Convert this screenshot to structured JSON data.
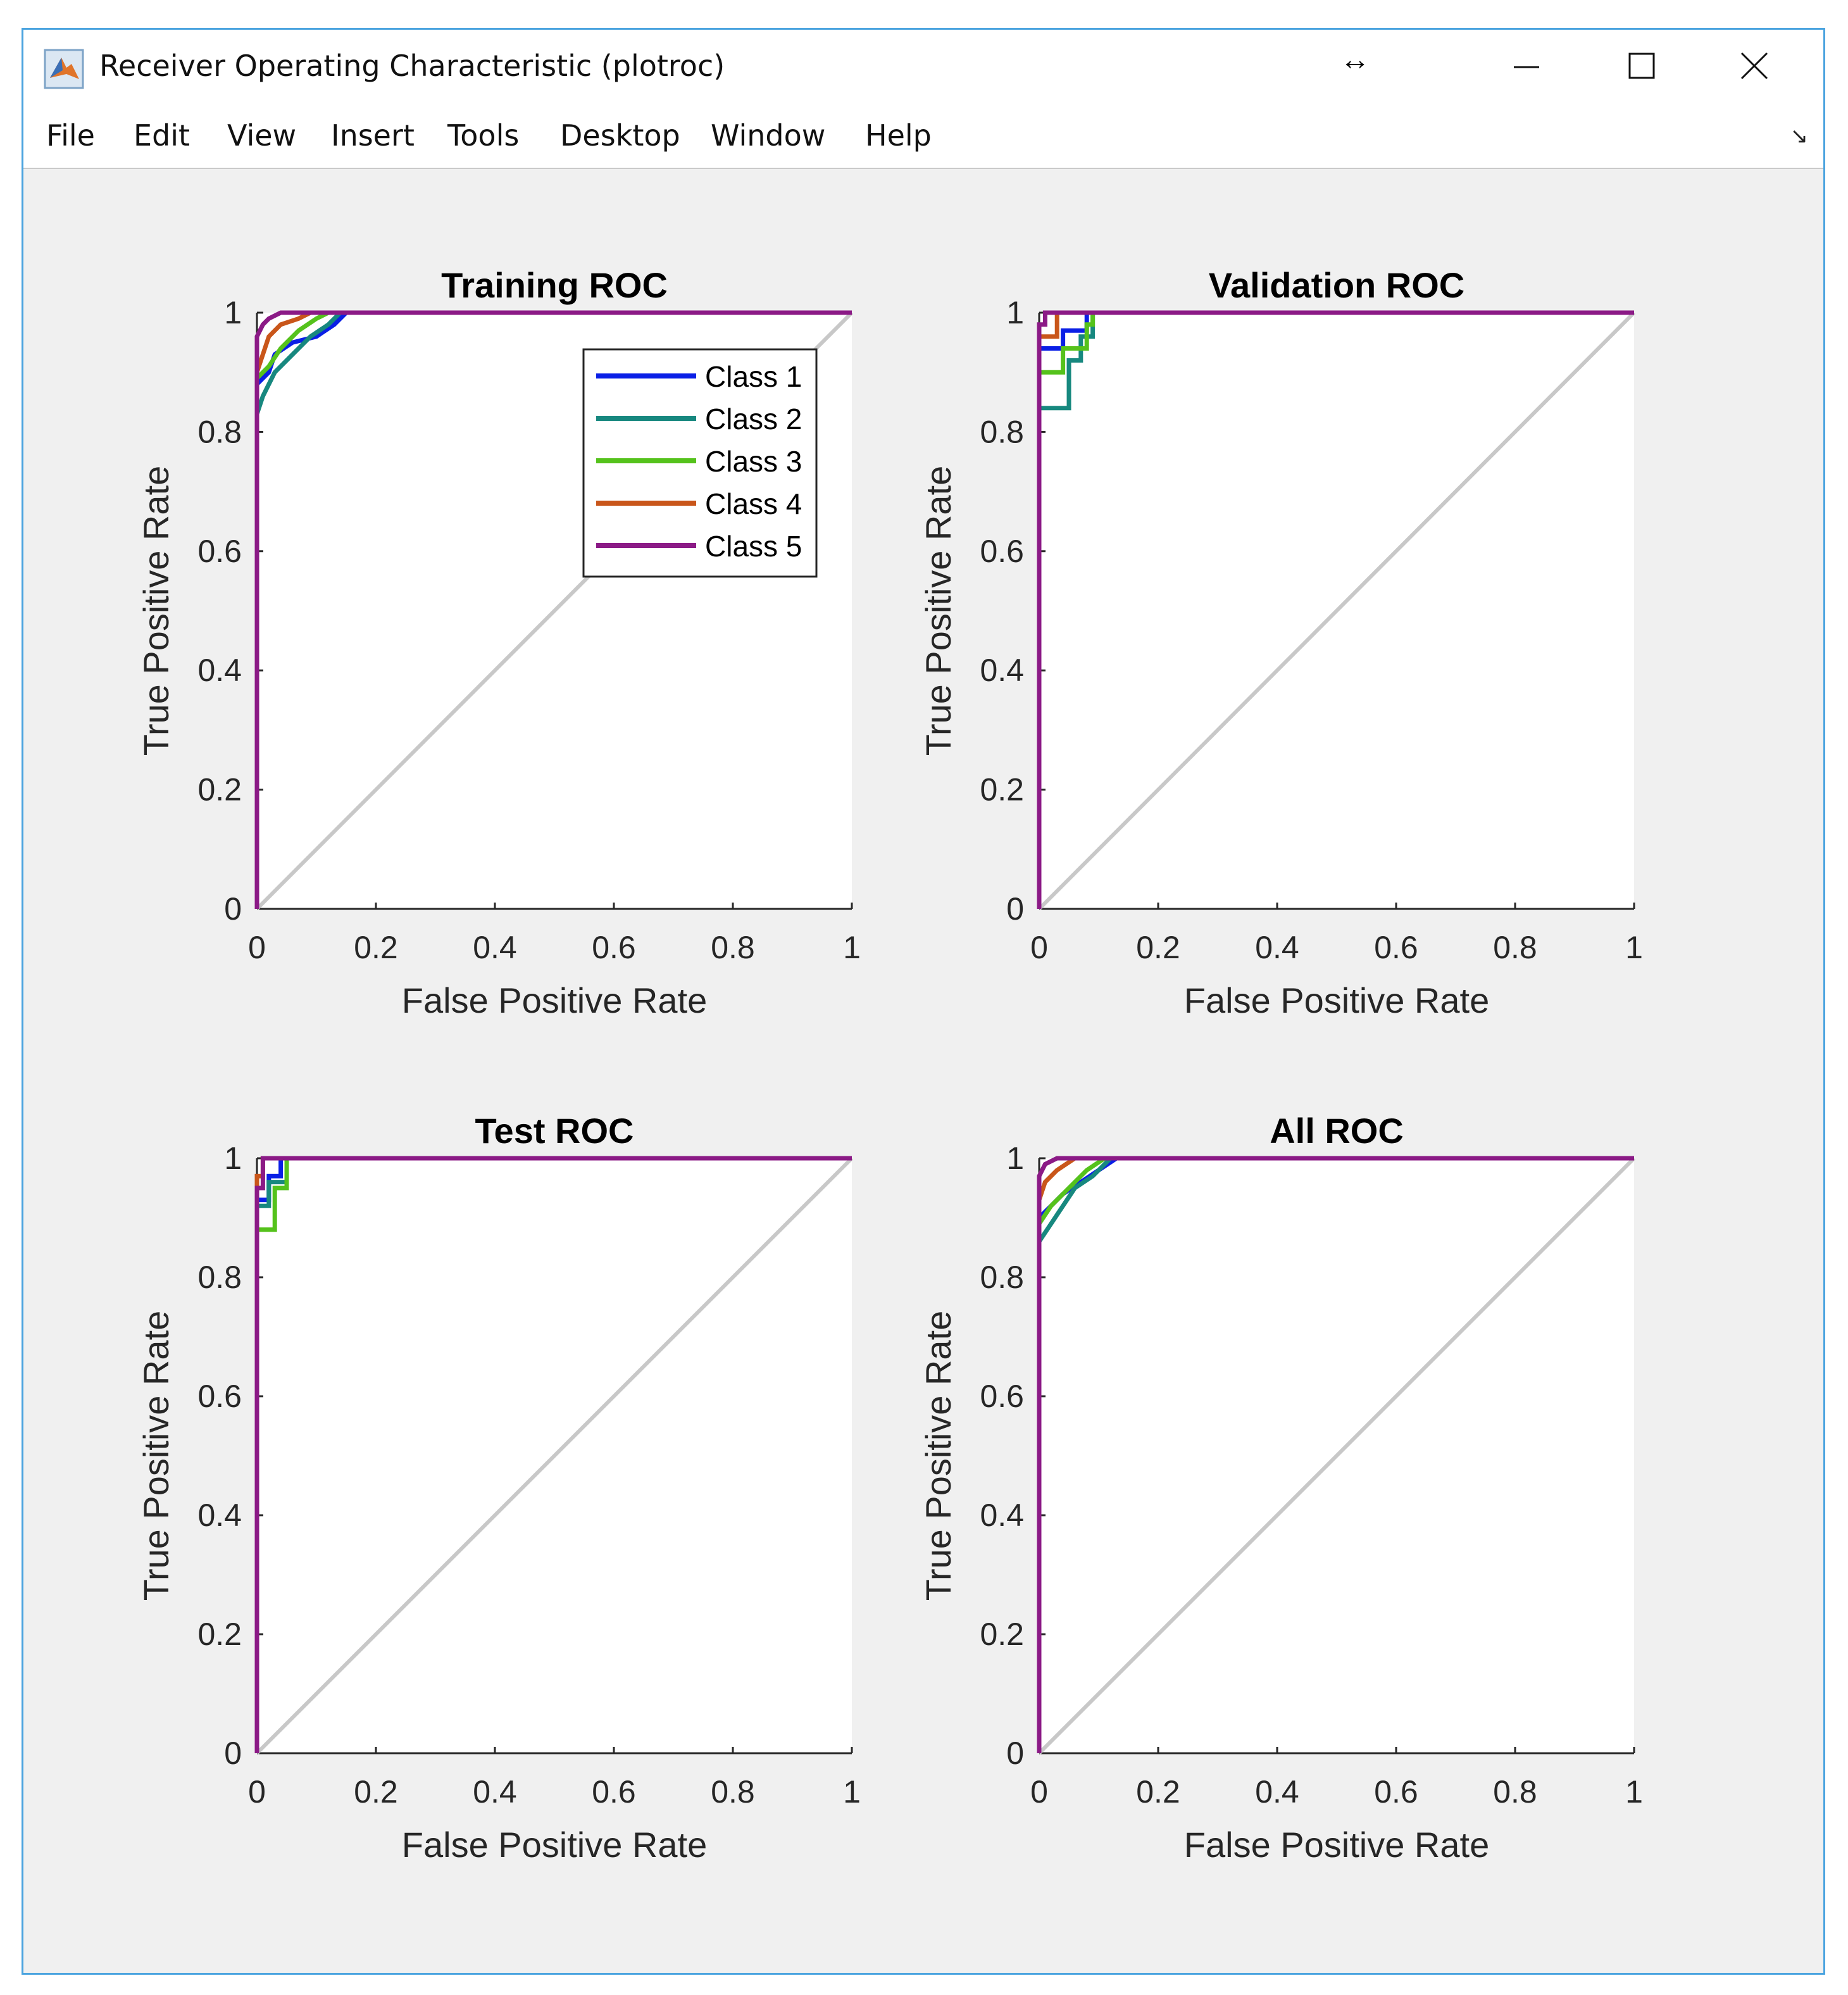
{
  "window": {
    "title": "Receiver Operating Characteristic (plotroc)",
    "controls": {
      "resize_glyph": "↔",
      "minimize_icon": "minimize-icon",
      "maximize_icon": "maximize-icon",
      "close_icon": "close-icon"
    }
  },
  "menu": {
    "items": [
      {
        "label": "File"
      },
      {
        "label": "Edit"
      },
      {
        "label": "View"
      },
      {
        "label": "Insert"
      },
      {
        "label": "Tools"
      },
      {
        "label": "Desktop"
      },
      {
        "label": "Window"
      },
      {
        "label": "Help"
      }
    ],
    "dock_glyph": "↘"
  },
  "colors": {
    "Class 1": "#0a1fe6",
    "Class 2": "#17887f",
    "Class 3": "#55c21c",
    "Class 4": "#c9561a",
    "Class 5": "#8b1a86",
    "diagonal": "#c8c8c8"
  },
  "chart_data": [
    {
      "type": "line",
      "title": "Training ROC",
      "xlabel": "False Positive Rate",
      "ylabel": "True Positive Rate",
      "xlim": [
        0,
        1
      ],
      "ylim": [
        0,
        1
      ],
      "xticks": [
        "0",
        "0.2",
        "0.4",
        "0.6",
        "0.8",
        "1"
      ],
      "yticks": [
        "0",
        "0.2",
        "0.4",
        "0.6",
        "0.8",
        "1"
      ],
      "legend": {
        "position": "top-right",
        "entries": [
          "Class 1",
          "Class 2",
          "Class 3",
          "Class 4",
          "Class 5"
        ]
      },
      "series": [
        {
          "name": "Class 1",
          "points": [
            [
              0,
              0
            ],
            [
              0,
              0.88
            ],
            [
              0.02,
              0.9
            ],
            [
              0.03,
              0.93
            ],
            [
              0.06,
              0.95
            ],
            [
              0.1,
              0.96
            ],
            [
              0.13,
              0.98
            ],
            [
              0.15,
              1
            ],
            [
              1,
              1
            ]
          ]
        },
        {
          "name": "Class 2",
          "points": [
            [
              0,
              0
            ],
            [
              0,
              0.83
            ],
            [
              0.01,
              0.86
            ],
            [
              0.03,
              0.9
            ],
            [
              0.06,
              0.93
            ],
            [
              0.09,
              0.96
            ],
            [
              0.12,
              0.98
            ],
            [
              0.14,
              1
            ],
            [
              1,
              1
            ]
          ]
        },
        {
          "name": "Class 3",
          "points": [
            [
              0,
              0
            ],
            [
              0,
              0.89
            ],
            [
              0.02,
              0.91
            ],
            [
              0.04,
              0.94
            ],
            [
              0.07,
              0.97
            ],
            [
              0.1,
              0.99
            ],
            [
              0.12,
              1
            ],
            [
              1,
              1
            ]
          ]
        },
        {
          "name": "Class 4",
          "points": [
            [
              0,
              0
            ],
            [
              0,
              0.9
            ],
            [
              0.01,
              0.93
            ],
            [
              0.02,
              0.96
            ],
            [
              0.04,
              0.98
            ],
            [
              0.07,
              0.99
            ],
            [
              0.09,
              1
            ],
            [
              1,
              1
            ]
          ]
        },
        {
          "name": "Class 5",
          "points": [
            [
              0,
              0
            ],
            [
              0,
              0.96
            ],
            [
              0.01,
              0.98
            ],
            [
              0.02,
              0.99
            ],
            [
              0.04,
              1
            ],
            [
              1,
              1
            ]
          ]
        }
      ],
      "diagonal": true
    },
    {
      "type": "line",
      "title": "Validation ROC",
      "xlabel": "False Positive Rate",
      "ylabel": "True Positive Rate",
      "xlim": [
        0,
        1
      ],
      "ylim": [
        0,
        1
      ],
      "xticks": [
        "0",
        "0.2",
        "0.4",
        "0.6",
        "0.8",
        "1"
      ],
      "yticks": [
        "0",
        "0.2",
        "0.4",
        "0.6",
        "0.8",
        "1"
      ],
      "series": [
        {
          "name": "Class 1",
          "points": [
            [
              0,
              0
            ],
            [
              0,
              0.94
            ],
            [
              0.04,
              0.94
            ],
            [
              0.04,
              0.97
            ],
            [
              0.08,
              0.97
            ],
            [
              0.08,
              1
            ],
            [
              1,
              1
            ]
          ]
        },
        {
          "name": "Class 2",
          "points": [
            [
              0,
              0
            ],
            [
              0,
              0.84
            ],
            [
              0.05,
              0.84
            ],
            [
              0.05,
              0.92
            ],
            [
              0.07,
              0.92
            ],
            [
              0.07,
              0.96
            ],
            [
              0.09,
              0.96
            ],
            [
              0.09,
              1
            ],
            [
              1,
              1
            ]
          ]
        },
        {
          "name": "Class 3",
          "points": [
            [
              0,
              0
            ],
            [
              0,
              0.9
            ],
            [
              0.04,
              0.9
            ],
            [
              0.04,
              0.94
            ],
            [
              0.08,
              0.94
            ],
            [
              0.08,
              0.98
            ],
            [
              0.09,
              0.98
            ],
            [
              0.09,
              1
            ],
            [
              1,
              1
            ]
          ]
        },
        {
          "name": "Class 4",
          "points": [
            [
              0,
              0
            ],
            [
              0,
              0.96
            ],
            [
              0.03,
              0.96
            ],
            [
              0.03,
              1
            ],
            [
              1,
              1
            ]
          ]
        },
        {
          "name": "Class 5",
          "points": [
            [
              0,
              0
            ],
            [
              0,
              0.98
            ],
            [
              0.01,
              0.98
            ],
            [
              0.01,
              1
            ],
            [
              1,
              1
            ]
          ]
        }
      ],
      "diagonal": true
    },
    {
      "type": "line",
      "title": "Test ROC",
      "xlabel": "False Positive Rate",
      "ylabel": "True Positive Rate",
      "xlim": [
        0,
        1
      ],
      "ylim": [
        0,
        1
      ],
      "xticks": [
        "0",
        "0.2",
        "0.4",
        "0.6",
        "0.8",
        "1"
      ],
      "yticks": [
        "0",
        "0.2",
        "0.4",
        "0.6",
        "0.8",
        "1"
      ],
      "series": [
        {
          "name": "Class 1",
          "points": [
            [
              0,
              0
            ],
            [
              0,
              0.93
            ],
            [
              0.02,
              0.93
            ],
            [
              0.02,
              0.97
            ],
            [
              0.04,
              0.97
            ],
            [
              0.04,
              1
            ],
            [
              1,
              1
            ]
          ]
        },
        {
          "name": "Class 2",
          "points": [
            [
              0,
              0
            ],
            [
              0,
              0.92
            ],
            [
              0.02,
              0.92
            ],
            [
              0.02,
              0.96
            ],
            [
              0.05,
              0.96
            ],
            [
              0.05,
              1
            ],
            [
              1,
              1
            ]
          ]
        },
        {
          "name": "Class 3",
          "points": [
            [
              0,
              0
            ],
            [
              0,
              0.88
            ],
            [
              0.03,
              0.88
            ],
            [
              0.03,
              0.95
            ],
            [
              0.05,
              0.95
            ],
            [
              0.05,
              1
            ],
            [
              1,
              1
            ]
          ]
        },
        {
          "name": "Class 4",
          "points": [
            [
              0,
              0
            ],
            [
              0,
              0.97
            ],
            [
              0.01,
              0.97
            ],
            [
              0.01,
              1
            ],
            [
              1,
              1
            ]
          ]
        },
        {
          "name": "Class 5",
          "points": [
            [
              0,
              0
            ],
            [
              0,
              0.95
            ],
            [
              0.01,
              0.95
            ],
            [
              0.01,
              1
            ],
            [
              1,
              1
            ]
          ]
        }
      ],
      "diagonal": true
    },
    {
      "type": "line",
      "title": "All ROC",
      "xlabel": "False Positive Rate",
      "ylabel": "True Positive Rate",
      "xlim": [
        0,
        1
      ],
      "ylim": [
        0,
        1
      ],
      "xticks": [
        "0",
        "0.2",
        "0.4",
        "0.6",
        "0.8",
        "1"
      ],
      "yticks": [
        "0",
        "0.2",
        "0.4",
        "0.6",
        "0.8",
        "1"
      ],
      "series": [
        {
          "name": "Class 1",
          "points": [
            [
              0,
              0
            ],
            [
              0,
              0.9
            ],
            [
              0.02,
              0.92
            ],
            [
              0.04,
              0.94
            ],
            [
              0.07,
              0.96
            ],
            [
              0.1,
              0.98
            ],
            [
              0.13,
              1
            ],
            [
              1,
              1
            ]
          ]
        },
        {
          "name": "Class 2",
          "points": [
            [
              0,
              0
            ],
            [
              0,
              0.86
            ],
            [
              0.02,
              0.89
            ],
            [
              0.04,
              0.92
            ],
            [
              0.06,
              0.95
            ],
            [
              0.09,
              0.97
            ],
            [
              0.12,
              1
            ],
            [
              1,
              1
            ]
          ]
        },
        {
          "name": "Class 3",
          "points": [
            [
              0,
              0
            ],
            [
              0,
              0.89
            ],
            [
              0.02,
              0.92
            ],
            [
              0.05,
              0.95
            ],
            [
              0.08,
              0.98
            ],
            [
              0.11,
              1
            ],
            [
              1,
              1
            ]
          ]
        },
        {
          "name": "Class 4",
          "points": [
            [
              0,
              0
            ],
            [
              0,
              0.93
            ],
            [
              0.01,
              0.96
            ],
            [
              0.03,
              0.98
            ],
            [
              0.06,
              1
            ],
            [
              1,
              1
            ]
          ]
        },
        {
          "name": "Class 5",
          "points": [
            [
              0,
              0
            ],
            [
              0,
              0.97
            ],
            [
              0.01,
              0.99
            ],
            [
              0.03,
              1
            ],
            [
              1,
              1
            ]
          ]
        }
      ],
      "diagonal": true
    }
  ]
}
